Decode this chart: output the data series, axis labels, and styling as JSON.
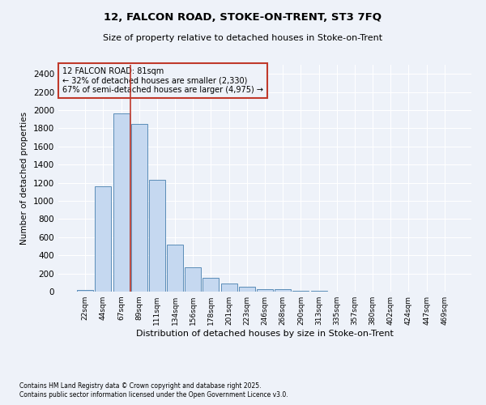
{
  "title_line1": "12, FALCON ROAD, STOKE-ON-TRENT, ST3 7FQ",
  "title_line2": "Size of property relative to detached houses in Stoke-on-Trent",
  "xlabel": "Distribution of detached houses by size in Stoke-on-Trent",
  "ylabel": "Number of detached properties",
  "categories": [
    "22sqm",
    "44sqm",
    "67sqm",
    "89sqm",
    "111sqm",
    "134sqm",
    "156sqm",
    "178sqm",
    "201sqm",
    "223sqm",
    "246sqm",
    "268sqm",
    "290sqm",
    "313sqm",
    "335sqm",
    "357sqm",
    "380sqm",
    "402sqm",
    "424sqm",
    "447sqm",
    "469sqm"
  ],
  "values": [
    22,
    1160,
    1960,
    1850,
    1230,
    515,
    270,
    155,
    85,
    50,
    30,
    28,
    8,
    5,
    3,
    2,
    1,
    1,
    1,
    1,
    1
  ],
  "bar_color": "#c5d8f0",
  "bar_edge_color": "#5b8db8",
  "vline_color": "#c0392b",
  "vline_x": 2.5,
  "annotation_title": "12 FALCON ROAD: 81sqm",
  "annotation_line1": "← 32% of detached houses are smaller (2,330)",
  "annotation_line2": "67% of semi-detached houses are larger (4,975) →",
  "annotation_box_color": "#c0392b",
  "ylim": [
    0,
    2500
  ],
  "yticks": [
    0,
    200,
    400,
    600,
    800,
    1000,
    1200,
    1400,
    1600,
    1800,
    2000,
    2200,
    2400
  ],
  "footnote_line1": "Contains HM Land Registry data © Crown copyright and database right 2025.",
  "footnote_line2": "Contains public sector information licensed under the Open Government Licence v3.0.",
  "bg_color": "#eef2f9",
  "grid_color": "#ffffff"
}
